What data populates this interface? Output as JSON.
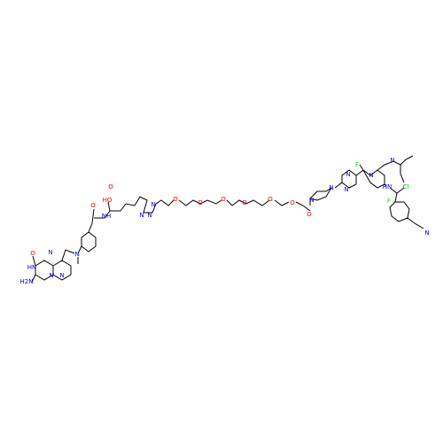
{
  "atoms": [
    {
      "label": "O"
    },
    {
      "label": "N"
    },
    {
      "label": "HN"
    },
    {
      "label": "N"
    },
    {
      "label": "H2N"
    },
    {
      "label": "N"
    },
    {
      "label": "N"
    },
    {
      "label": "O"
    },
    {
      "label": "NH"
    },
    {
      "label": "HO"
    },
    {
      "label": "O"
    },
    {
      "label": "N"
    },
    {
      "label": "N"
    },
    {
      "label": "N"
    },
    {
      "label": "O"
    },
    {
      "label": "O"
    },
    {
      "label": "O"
    },
    {
      "label": "O"
    },
    {
      "label": "O"
    },
    {
      "label": "O"
    },
    {
      "label": "O"
    },
    {
      "label": "N"
    },
    {
      "label": "N"
    },
    {
      "label": "N"
    },
    {
      "label": "N"
    },
    {
      "label": "F"
    },
    {
      "label": "N"
    },
    {
      "label": "N"
    },
    {
      "label": "Cl"
    },
    {
      "label": "HN"
    },
    {
      "label": "F"
    },
    {
      "label": "N"
    }
  ]
}
